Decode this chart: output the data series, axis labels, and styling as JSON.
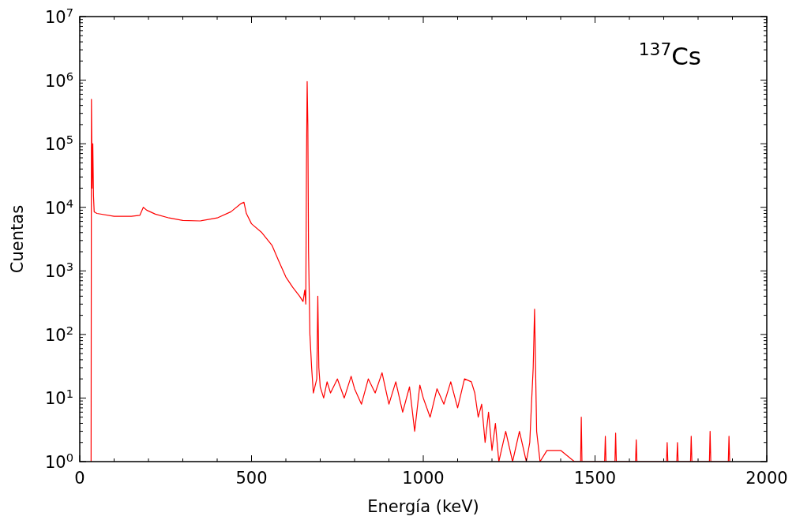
{
  "chart_data": {
    "type": "line",
    "xlabel": "Energía (keV)",
    "ylabel": "Cuentas",
    "annotations": [
      "$^{137}$Cs"
    ],
    "log": "y",
    "grid": false,
    "xlim": [
      0,
      2000
    ],
    "ylim": [
      1,
      10000000
    ],
    "xticks": [
      0,
      {
        "value": 100,
        "label": null
      },
      {
        "value": 200,
        "label": null
      },
      {
        "value": 300,
        "label": null
      },
      {
        "value": 400,
        "label": null
      },
      500,
      {
        "value": 600,
        "label": null
      },
      {
        "value": 700,
        "label": null
      },
      {
        "value": 800,
        "label": null
      },
      {
        "value": 900,
        "label": null
      },
      1000,
      {
        "value": 1100,
        "label": null
      },
      {
        "value": 1200,
        "label": null
      },
      {
        "value": 1300,
        "label": null
      },
      {
        "value": 1400,
        "label": null
      },
      1500,
      {
        "value": 1600,
        "label": null
      },
      {
        "value": 1700,
        "label": null
      },
      {
        "value": 1800,
        "label": null
      },
      {
        "value": 1900,
        "label": null
      },
      2000
    ],
    "yticks": [
      {
        "value": 1,
        "label": "10$^{0}$"
      },
      {
        "value": 10,
        "label": "10$^{1}$"
      },
      {
        "value": 100,
        "label": "10$^{2}$"
      },
      {
        "value": 1000,
        "label": "10$^{3}$"
      },
      {
        "value": 10000,
        "label": "10$^{4}$"
      },
      {
        "value": 100000,
        "label": "10$^{5}$"
      },
      {
        "value": 1000000,
        "label": "10$^{6}$"
      },
      {
        "value": 10000000,
        "label": "10$^{7}$"
      }
    ],
    "series": [
      {
        "color": "#ff0000",
        "x": [
          33,
          34,
          36,
          38,
          40,
          42,
          50,
          100,
          150,
          175,
          185,
          195,
          220,
          260,
          300,
          350,
          400,
          440,
          470,
          478,
          485,
          500,
          530,
          560,
          580,
          600,
          620,
          640,
          650,
          655,
          658,
          660,
          662,
          664,
          666,
          670,
          675,
          680,
          690,
          693,
          696,
          700,
          710,
          720,
          730,
          750,
          770,
          790,
          800,
          820,
          840,
          860,
          880,
          900,
          920,
          940,
          960,
          975,
          990,
          1000,
          1020,
          1040,
          1060,
          1080,
          1100,
          1120,
          1140,
          1150,
          1160,
          1170,
          1180,
          1190,
          1200,
          1210,
          1220,
          1240,
          1260,
          1280,
          1300,
          1310,
          1315,
          1320,
          1324,
          1326,
          1330,
          1340,
          1360,
          1400,
          1440,
          1458,
          1460,
          1462,
          1528,
          1530,
          1532,
          1558,
          1560,
          1562,
          1618,
          1620,
          1622,
          1708,
          1710,
          1712,
          1738,
          1740,
          1742,
          1778,
          1780,
          1782,
          1833,
          1835,
          1837,
          1888,
          1890,
          1892
        ],
        "values": [
          1,
          500000,
          20000,
          100000,
          15000,
          8500,
          8000,
          7200,
          7200,
          7500,
          10000,
          9000,
          7800,
          6800,
          6200,
          6100,
          6800,
          8500,
          11500,
          12000,
          8000,
          5500,
          4000,
          2500,
          1400,
          800,
          550,
          400,
          330,
          500,
          300,
          50000,
          950000,
          200000,
          2000,
          100,
          30,
          12,
          20,
          400,
          30,
          15,
          10,
          18,
          12,
          20,
          10,
          22,
          14,
          8,
          20,
          12,
          25,
          8,
          18,
          6,
          15,
          3,
          16,
          10,
          5,
          14,
          8,
          18,
          7,
          20,
          18,
          12,
          5,
          8,
          2,
          6,
          1.5,
          4,
          1,
          3,
          1,
          3,
          1,
          2,
          8,
          30,
          250,
          60,
          3,
          1,
          1.5,
          1.5,
          1,
          1,
          5,
          1,
          1,
          2.5,
          1,
          1,
          2.8,
          1,
          1,
          2.2,
          1,
          1,
          2,
          1,
          1,
          2,
          1,
          1,
          2.5,
          1,
          1,
          3,
          1,
          1,
          2.5,
          1
        ]
      }
    ]
  }
}
